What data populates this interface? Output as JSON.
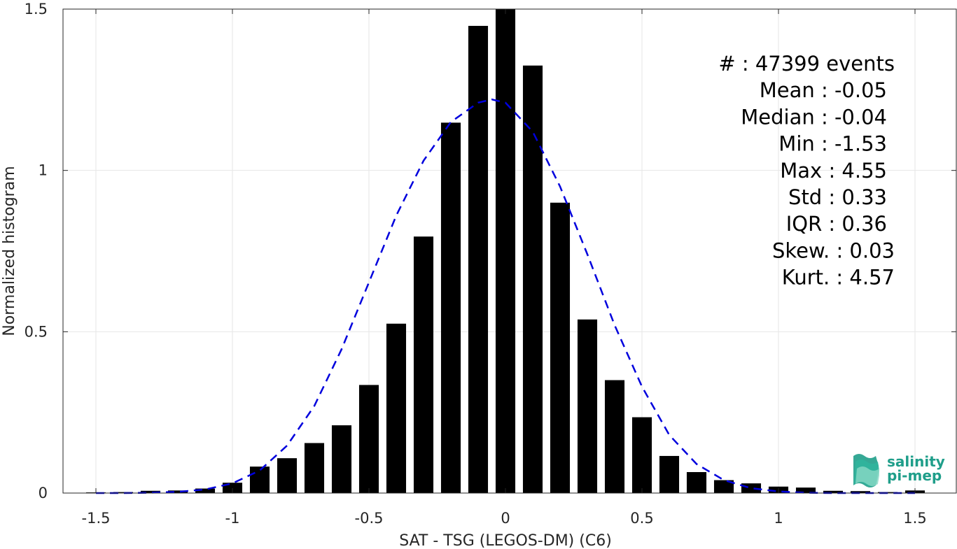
{
  "chart_data": {
    "type": "bar",
    "xlabel": "SAT - TSG (LEGOS-DM) (C6)",
    "ylabel": "Normalized histogram",
    "xlim": [
      -1.6,
      1.6
    ],
    "ylim": [
      0,
      1.5
    ],
    "xticks": [
      -1.5,
      -1,
      -0.5,
      0,
      0.5,
      1,
      1.5
    ],
    "xtick_labels": [
      "-1.5",
      "-1",
      "-0.5",
      "0",
      "0.5",
      "1",
      "1.5"
    ],
    "yticks": [
      0,
      0.5,
      1,
      1.5
    ],
    "ytick_labels": [
      "0",
      "0.5",
      "1",
      "1.5"
    ],
    "grid": true,
    "bar_color": "#000000",
    "bars": {
      "x": [
        -1.5,
        -1.4,
        -1.3,
        -1.2,
        -1.1,
        -1.0,
        -0.9,
        -0.8,
        -0.7,
        -0.6,
        -0.5,
        -0.4,
        -0.3,
        -0.2,
        -0.1,
        0.0,
        0.1,
        0.2,
        0.3,
        0.4,
        0.5,
        0.6,
        0.7,
        0.8,
        0.9,
        1.0,
        1.1,
        1.2,
        1.3,
        1.4,
        1.5
      ],
      "values": [
        0.002,
        0.003,
        0.007,
        0.008,
        0.014,
        0.032,
        0.082,
        0.108,
        0.155,
        0.21,
        0.335,
        0.525,
        0.795,
        1.148,
        1.448,
        1.5,
        1.325,
        0.9,
        0.538,
        0.35,
        0.235,
        0.115,
        0.065,
        0.04,
        0.03,
        0.02,
        0.017,
        0.007,
        0.006,
        0.003,
        0.008
      ]
    },
    "fit": {
      "style": "dashed",
      "color": "#0000dd",
      "x": [
        -1.5,
        -1.4,
        -1.3,
        -1.2,
        -1.1,
        -1.0,
        -0.9,
        -0.8,
        -0.7,
        -0.6,
        -0.5,
        -0.4,
        -0.3,
        -0.2,
        -0.1,
        -0.05,
        0.0,
        0.1,
        0.2,
        0.3,
        0.4,
        0.5,
        0.6,
        0.7,
        0.8,
        0.9,
        1.0,
        1.1,
        1.2,
        1.3,
        1.4,
        1.5
      ],
      "y": [
        0.0,
        0.0,
        0.001,
        0.004,
        0.011,
        0.03,
        0.07,
        0.147,
        0.27,
        0.446,
        0.653,
        0.86,
        1.03,
        1.15,
        1.21,
        1.22,
        1.21,
        1.12,
        0.95,
        0.74,
        0.52,
        0.33,
        0.18,
        0.09,
        0.04,
        0.015,
        0.005,
        0.001,
        0.0,
        0.0,
        0.0,
        0.0
      ]
    },
    "stats": [
      "#  : 47399 events",
      "Mean : -0.05",
      "Median : -0.04",
      "Min : -1.53",
      "Max : 4.55",
      "Std : 0.33",
      "IQR : 0.36",
      "Skew. : 0.03",
      "Kurt. : 4.57"
    ]
  },
  "logo": {
    "line1": "salinity",
    "line2": "pi-mep"
  }
}
